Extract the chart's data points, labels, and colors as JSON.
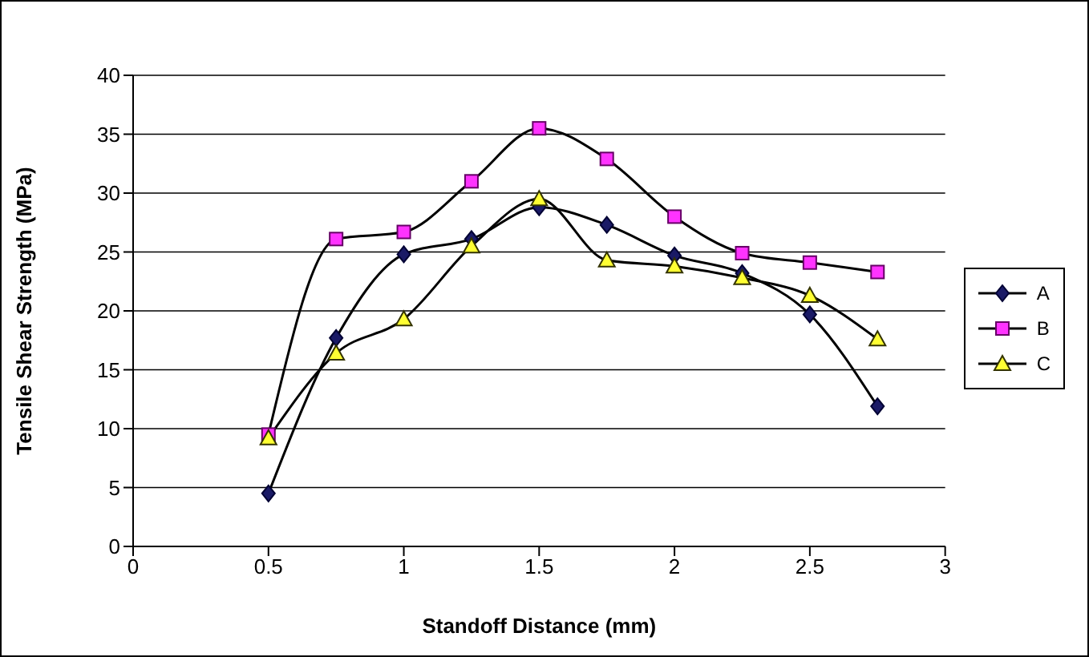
{
  "chart_data": {
    "type": "line",
    "xlabel": "Standoff Distance (mm)",
    "ylabel": "Tensile Shear Strength (MPa)",
    "x": [
      0.5,
      0.75,
      1,
      1.25,
      1.5,
      1.75,
      2,
      2.25,
      2.5,
      2.75
    ],
    "series": [
      {
        "name": "A",
        "color": "#1a1a66",
        "marker": "diamond",
        "values": [
          4.5,
          17.7,
          24.8,
          26.1,
          28.8,
          27.3,
          24.7,
          23.2,
          19.7,
          11.9
        ]
      },
      {
        "name": "B",
        "color": "#ff33ff",
        "marker": "square",
        "values": [
          9.5,
          26.1,
          26.7,
          31,
          35.5,
          32.9,
          28,
          24.9,
          24.1,
          23.3
        ]
      },
      {
        "name": "C",
        "color": "#ffff33",
        "marker": "triangle",
        "values": [
          9.2,
          16.4,
          19.3,
          25.5,
          29.5,
          24.3,
          23.8,
          22.8,
          21.3,
          17.6
        ]
      }
    ],
    "xlim": [
      0,
      3
    ],
    "xticks": [
      0,
      0.5,
      1,
      1.5,
      2,
      2.5,
      3
    ],
    "ylim": [
      0,
      40
    ],
    "yticks": [
      0,
      5,
      10,
      15,
      20,
      25,
      30,
      35,
      40
    ],
    "grid": "y",
    "legend": "right"
  }
}
